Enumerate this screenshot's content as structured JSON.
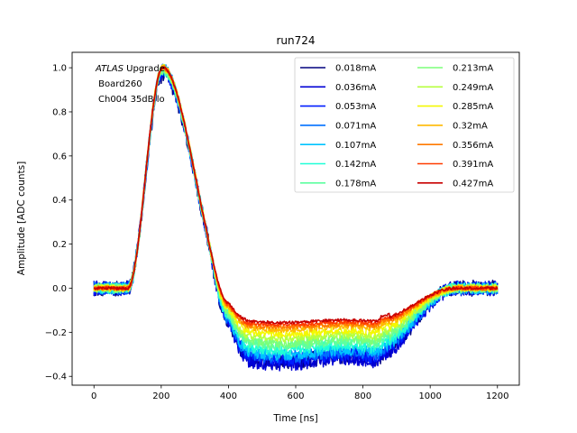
{
  "chart_data": {
    "type": "line",
    "title": "run724",
    "xlabel": "Time [ns]",
    "ylabel": "Amplitude [ADC counts]",
    "xlim": [
      -65,
      1265
    ],
    "ylim": [
      -0.44,
      1.07
    ],
    "xticks": [
      0,
      200,
      400,
      600,
      800,
      1000,
      1200
    ],
    "yticks": [
      -0.4,
      -0.2,
      0.0,
      0.2,
      0.4,
      0.6,
      0.8,
      1.0
    ],
    "xtick_labels": [
      "0",
      "200",
      "400",
      "600",
      "800",
      "1000",
      "1200"
    ],
    "ytick_labels": [
      "−0.4",
      "−0.2",
      "0.0",
      "0.2",
      "0.4",
      "0.6",
      "0.8",
      "1.0"
    ],
    "grid": false,
    "legend_position": "top-right",
    "legend_columns": 2,
    "annotation": {
      "italic_part": "ATLAS",
      "rest_of_line1": " Upgrade",
      "line2": " Board260",
      "line3": "Ch004 35dB lo"
    },
    "series": [
      {
        "name": "0.018mA",
        "color": "#00007f",
        "peak": 0.97,
        "floor": -0.32
      },
      {
        "name": "0.036mA",
        "color": "#0000d5",
        "peak": 0.98,
        "floor": -0.33
      },
      {
        "name": "0.053mA",
        "color": "#001cff",
        "peak": 0.98,
        "floor": -0.31
      },
      {
        "name": "0.071mA",
        "color": "#0070ff",
        "peak": 0.99,
        "floor": -0.3
      },
      {
        "name": "0.107mA",
        "color": "#00c4ff",
        "peak": 0.99,
        "floor": -0.29
      },
      {
        "name": "0.142mA",
        "color": "#1fffd7",
        "peak": 0.99,
        "floor": -0.27
      },
      {
        "name": "0.178mA",
        "color": "#5dffa0",
        "peak": 0.99,
        "floor": -0.25
      },
      {
        "name": "0.213mA",
        "color": "#7cff79",
        "peak": 0.99,
        "floor": -0.24
      },
      {
        "name": "0.249mA",
        "color": "#b7ff3f",
        "peak": 1.0,
        "floor": -0.22
      },
      {
        "name": "0.285mA",
        "color": "#f4f802",
        "peak": 1.0,
        "floor": -0.2
      },
      {
        "name": "0.32mA",
        "color": "#ffb900",
        "peak": 1.0,
        "floor": -0.18
      },
      {
        "name": "0.356mA",
        "color": "#ff7a00",
        "peak": 1.0,
        "floor": -0.17
      },
      {
        "name": "0.391mA",
        "color": "#ff3b00",
        "peak": 1.0,
        "floor": -0.16
      },
      {
        "name": "0.427mA",
        "color": "#c80000",
        "peak": 1.0,
        "floor": -0.15
      }
    ]
  }
}
